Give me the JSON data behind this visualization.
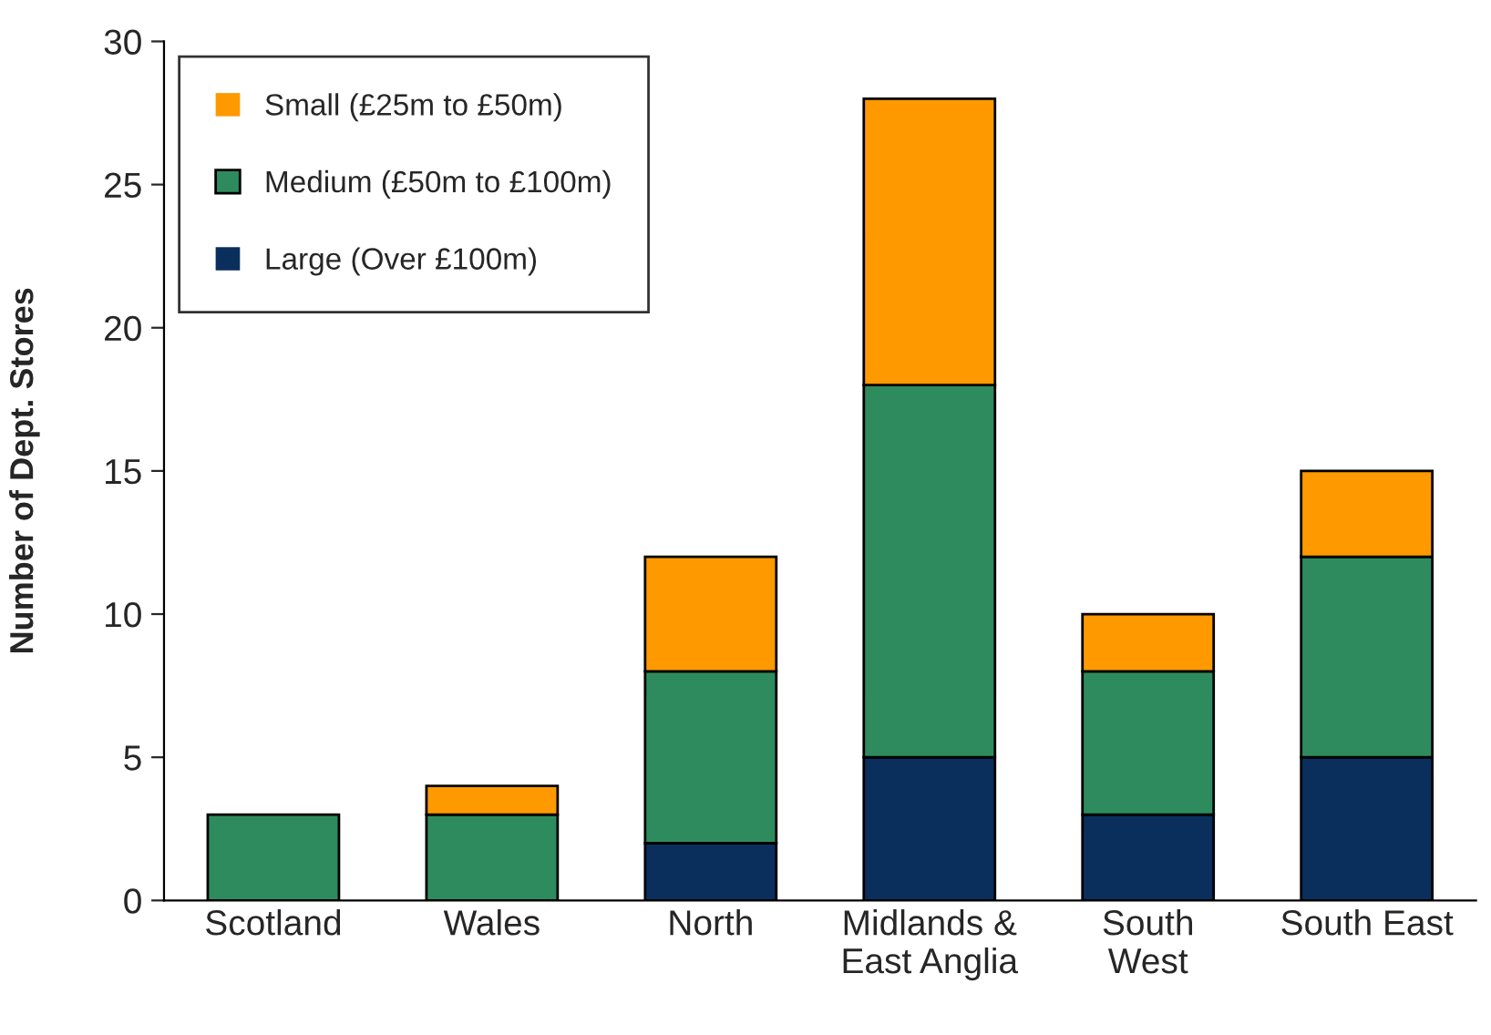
{
  "chart_data": {
    "type": "bar",
    "stacked": true,
    "ylabel": "Number of Dept. Stores",
    "categories": [
      "Scotland",
      "Wales",
      "North",
      "Midlands &\nEast Anglia",
      "South\nWest",
      "South East"
    ],
    "series": [
      {
        "name": "Large (Over £100m)",
        "color": "#0b2f5c",
        "values": [
          0,
          0,
          2,
          5,
          3,
          5
        ]
      },
      {
        "name": "Medium (£50m to £100m)",
        "color": "#2e8b5e",
        "values": [
          3,
          3,
          6,
          13,
          5,
          7
        ]
      },
      {
        "name": "Small (£25m to £50m)",
        "color": "#ff9900",
        "values": [
          0,
          1,
          4,
          10,
          2,
          3
        ]
      }
    ],
    "ylim": [
      0,
      30
    ],
    "yticks": [
      0,
      5,
      10,
      15,
      20,
      25,
      30
    ],
    "grid": false,
    "legend": "top left"
  }
}
